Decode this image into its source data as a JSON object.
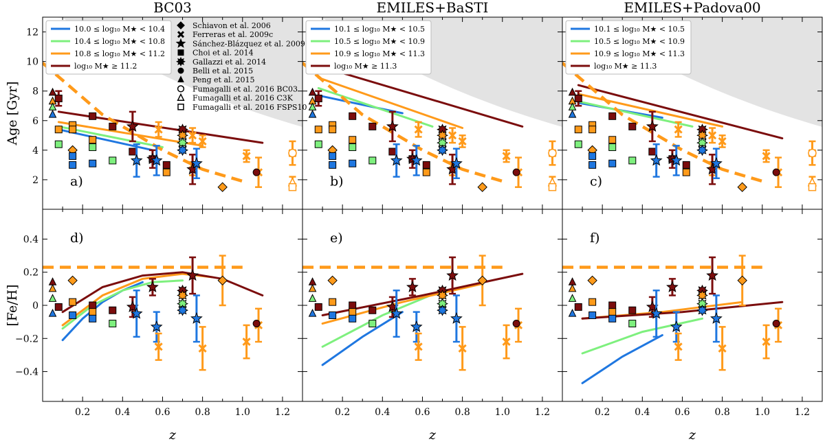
{
  "chart_data": {
    "type": "line",
    "x_label": "z",
    "x_range": [
      0,
      1.3
    ],
    "x_ticks": [
      "0.2",
      "0.4",
      "0.6",
      "0.8",
      "1.0",
      "1.2"
    ],
    "x_tick_values": [
      0.2,
      0.4,
      0.6,
      0.8,
      1.0,
      1.2
    ],
    "top_row": {
      "y_label": "Age [Gyr]",
      "y_range": [
        0,
        13
      ],
      "y_ticks": [
        "2",
        "4",
        "6",
        "8",
        "10",
        "12"
      ],
      "y_tick_values": [
        2,
        4,
        6,
        8,
        10,
        12
      ]
    },
    "bottom_row": {
      "y_label": "[Fe/H]",
      "y_range": [
        -0.58,
        0.58
      ],
      "y_ticks": [
        "−0.4",
        "−0.2",
        "0",
        "0.2",
        "0.4"
      ],
      "y_tick_values": [
        -0.4,
        -0.2,
        0,
        0.2,
        0.4
      ]
    },
    "colors": {
      "bin1": "#1f77e0",
      "bin2": "#7ef07e",
      "bin3": "#ff9a1a",
      "bin4": "#7b0d0d",
      "shade": "#e3e3e3"
    },
    "columns": [
      {
        "title": "BC03",
        "legend": [
          "10.0 ≤ log₁₀ M★ < 10.4",
          "10.4 ≤ log₁₀ M★ < 10.8",
          "10.8 ≤ log₁₀ M★ < 11.2",
          "log₁₀ M★ ≥ 11.2"
        ],
        "age_letter": "a)",
        "feh_letter": "d)",
        "age_series": [
          {
            "name": "bin1",
            "x": [
              0.08,
              0.55
            ],
            "y": [
              5.4,
              4.0
            ]
          },
          {
            "name": "bin2",
            "x": [
              0.08,
              0.6
            ],
            "y": [
              5.6,
              4.2
            ]
          },
          {
            "name": "bin3",
            "x": [
              0.08,
              0.8
            ],
            "y": [
              5.9,
              4.3
            ]
          },
          {
            "name": "bin4",
            "x": [
              0.08,
              1.1
            ],
            "y": [
              6.6,
              4.5
            ]
          }
        ],
        "age_dashed": {
          "x": [
            0.0,
            0.3,
            0.6,
            0.8,
            1.0
          ],
          "y": [
            9.9,
            6.4,
            4.0,
            2.7,
            1.9
          ]
        },
        "feh_series": [
          {
            "name": "bin1",
            "x": [
              0.1,
              0.2,
              0.3,
              0.4,
              0.5
            ],
            "y": [
              -0.21,
              -0.08,
              0.02,
              0.09,
              0.14
            ]
          },
          {
            "name": "bin2",
            "x": [
              0.1,
              0.25,
              0.4,
              0.55,
              0.7
            ],
            "y": [
              -0.14,
              0.0,
              0.09,
              0.14,
              0.15
            ]
          },
          {
            "name": "bin3",
            "x": [
              0.1,
              0.3,
              0.5,
              0.7,
              0.85
            ],
            "y": [
              -0.12,
              0.06,
              0.16,
              0.19,
              0.17
            ]
          },
          {
            "name": "bin4",
            "x": [
              0.1,
              0.3,
              0.5,
              0.7,
              0.9,
              1.1
            ],
            "y": [
              -0.04,
              0.11,
              0.18,
              0.2,
              0.16,
              0.06
            ]
          }
        ]
      },
      {
        "title": "EMILES+BaSTI",
        "legend": [
          "10.1 ≤ log₁₀ M★ < 10.5",
          "10.5 ≤ log₁₀ M★ < 10.9",
          "10.9 ≤ log₁₀ M★ < 11.3",
          "log₁₀ M★ ≥ 11.3"
        ],
        "age_letter": "b)",
        "feh_letter": "e)",
        "age_series": [
          {
            "name": "bin1",
            "x": [
              0.08,
              0.5
            ],
            "y": [
              7.7,
              6.5
            ]
          },
          {
            "name": "bin2",
            "x": [
              0.08,
              0.65
            ],
            "y": [
              8.2,
              5.6
            ]
          },
          {
            "name": "bin3",
            "x": [
              0.08,
              0.8
            ],
            "y": [
              8.9,
              5.5
            ]
          },
          {
            "name": "bin4",
            "x": [
              0.08,
              1.1
            ],
            "y": [
              9.7,
              5.6
            ]
          }
        ],
        "age_dashed": {
          "x": [
            0.0,
            0.3,
            0.6,
            0.8,
            1.0
          ],
          "y": [
            9.9,
            6.4,
            4.0,
            2.7,
            1.9
          ]
        },
        "feh_series": [
          {
            "name": "bin1",
            "x": [
              0.1,
              0.3,
              0.5
            ],
            "y": [
              -0.36,
              -0.19,
              -0.04
            ]
          },
          {
            "name": "bin2",
            "x": [
              0.1,
              0.4,
              0.7
            ],
            "y": [
              -0.25,
              -0.06,
              0.09
            ]
          },
          {
            "name": "bin3",
            "x": [
              0.1,
              0.5,
              0.9
            ],
            "y": [
              -0.11,
              0.02,
              0.13
            ]
          },
          {
            "name": "bin4",
            "x": [
              0.1,
              0.6,
              1.1
            ],
            "y": [
              -0.06,
              0.06,
              0.19
            ]
          }
        ]
      },
      {
        "title": "EMILES+Padova00",
        "legend": [
          "10.1 ≤ log₁₀ M★ < 10.5",
          "10.5 ≤ log₁₀ M★ < 10.9",
          "10.9 ≤ log₁₀ M★ < 11.3",
          "log₁₀ M★ ≥ 11.3"
        ],
        "age_letter": "c)",
        "feh_letter": "f)",
        "age_series": [
          {
            "name": "bin1",
            "x": [
              0.08,
              0.5
            ],
            "y": [
              7.2,
              6.2
            ]
          },
          {
            "name": "bin2",
            "x": [
              0.08,
              0.65
            ],
            "y": [
              7.3,
              5.6
            ]
          },
          {
            "name": "bin3",
            "x": [
              0.08,
              0.8
            ],
            "y": [
              7.8,
              5.6
            ]
          },
          {
            "name": "bin4",
            "x": [
              0.08,
              1.1
            ],
            "y": [
              8.4,
              4.8
            ]
          }
        ],
        "age_dashed": {
          "x": [
            0.0,
            0.3,
            0.6,
            0.8,
            1.0
          ],
          "y": [
            9.9,
            6.4,
            4.0,
            2.7,
            1.9
          ]
        },
        "feh_series": [
          {
            "name": "bin1",
            "x": [
              0.1,
              0.3,
              0.5
            ],
            "y": [
              -0.47,
              -0.31,
              -0.18
            ]
          },
          {
            "name": "bin2",
            "x": [
              0.1,
              0.4,
              0.7
            ],
            "y": [
              -0.29,
              -0.16,
              -0.08
            ]
          },
          {
            "name": "bin3",
            "x": [
              0.1,
              0.5,
              0.9
            ],
            "y": [
              -0.08,
              -0.04,
              0.02
            ]
          },
          {
            "name": "bin4",
            "x": [
              0.1,
              0.6,
              1.1
            ],
            "y": [
              -0.08,
              -0.04,
              0.02
            ]
          }
        ]
      }
    ],
    "references": [
      {
        "label": "Schiavon et al. 2006",
        "marker": "diamond"
      },
      {
        "label": "Ferreras et al. 2009c",
        "marker": "x"
      },
      {
        "label": "Sánchez-Blázquez et al. 2009",
        "marker": "star"
      },
      {
        "label": "Choi et al. 2014",
        "marker": "square"
      },
      {
        "label": "Gallazzi et al. 2014",
        "marker": "star8"
      },
      {
        "label": "Belli et al. 2015",
        "marker": "circle"
      },
      {
        "label": "Peng et al. 2015",
        "marker": "triangle"
      },
      {
        "label": "Fumagalli et al. 2016 BC03",
        "marker": "circle-open"
      },
      {
        "label": "Fumagalli et al. 2016 C3K",
        "marker": "triangle-open"
      },
      {
        "label": "Fumagalli et al. 2016 FSPS10",
        "marker": "square-open"
      }
    ],
    "age_points": [
      {
        "m": "triangle",
        "c": "bin4",
        "x": 0.05,
        "y": 7.9
      },
      {
        "m": "triangle",
        "c": "bin3",
        "x": 0.05,
        "y": 7.3
      },
      {
        "m": "triangle",
        "c": "bin2",
        "x": 0.05,
        "y": 6.9
      },
      {
        "m": "triangle",
        "c": "bin1",
        "x": 0.05,
        "y": 6.4
      },
      {
        "m": "square",
        "c": "bin4",
        "x": 0.08,
        "y": 7.5,
        "e": 0.5
      },
      {
        "m": "square",
        "c": "bin3",
        "x": 0.08,
        "y": 5.4
      },
      {
        "m": "square",
        "c": "bin2",
        "x": 0.08,
        "y": 4.4
      },
      {
        "m": "square",
        "c": "bin3",
        "x": 0.15,
        "y": 5.7
      },
      {
        "m": "square",
        "c": "bin3",
        "x": 0.15,
        "y": 5.4
      },
      {
        "m": "diamond",
        "c": "bin3",
        "x": 0.15,
        "y": 4.0
      },
      {
        "m": "square",
        "c": "bin1",
        "x": 0.15,
        "y": 3.6
      },
      {
        "m": "square",
        "c": "bin1",
        "x": 0.15,
        "y": 3.0
      },
      {
        "m": "square",
        "c": "bin4",
        "x": 0.25,
        "y": 6.3
      },
      {
        "m": "square",
        "c": "bin3",
        "x": 0.25,
        "y": 4.7
      },
      {
        "m": "square",
        "c": "bin2",
        "x": 0.25,
        "y": 4.2
      },
      {
        "m": "square",
        "c": "bin1",
        "x": 0.25,
        "y": 3.1
      },
      {
        "m": "square",
        "c": "bin4",
        "x": 0.35,
        "y": 5.6
      },
      {
        "m": "square",
        "c": "bin2",
        "x": 0.35,
        "y": 3.3
      },
      {
        "m": "star",
        "c": "bin4",
        "x": 0.45,
        "y": 5.6,
        "e": 1.0
      },
      {
        "m": "square",
        "c": "bin4",
        "x": 0.45,
        "y": 3.9
      },
      {
        "m": "star",
        "c": "bin1",
        "x": 0.47,
        "y": 3.3,
        "e": 1.1
      },
      {
        "m": "square",
        "c": "bin4",
        "x": 0.55,
        "y": 3.4
      },
      {
        "m": "star",
        "c": "bin4",
        "x": 0.55,
        "y": 3.4,
        "e": 0.6
      },
      {
        "m": "star",
        "c": "bin1",
        "x": 0.57,
        "y": 3.3,
        "e": 1.0
      },
      {
        "m": "square",
        "c": "bin4",
        "x": 0.62,
        "y": 3.0
      },
      {
        "m": "square",
        "c": "bin3",
        "x": 0.62,
        "y": 2.5
      },
      {
        "m": "x",
        "c": "bin3",
        "x": 0.58,
        "y": 5.4,
        "e": 0.5
      },
      {
        "m": "star8",
        "c": "bin4",
        "x": 0.7,
        "y": 5.4
      },
      {
        "m": "star8",
        "c": "bin3",
        "x": 0.7,
        "y": 5.0
      },
      {
        "m": "star8",
        "c": "bin2",
        "x": 0.7,
        "y": 4.5
      },
      {
        "m": "star8",
        "c": "bin1",
        "x": 0.7,
        "y": 4.0
      },
      {
        "m": "x",
        "c": "bin3",
        "x": 0.75,
        "y": 5.0,
        "e": 0.5
      },
      {
        "m": "x",
        "c": "bin3",
        "x": 0.75,
        "y": 3.0,
        "e": 0.7
      },
      {
        "m": "star",
        "c": "bin4",
        "x": 0.75,
        "y": 2.7,
        "e": 1.0
      },
      {
        "m": "star",
        "c": "bin1",
        "x": 0.77,
        "y": 3.1,
        "e": 1.0
      },
      {
        "m": "x",
        "c": "bin3",
        "x": 0.8,
        "y": 4.6,
        "e": 0.4
      },
      {
        "m": "diamond",
        "c": "bin3",
        "x": 0.9,
        "y": 1.5
      },
      {
        "m": "x",
        "c": "bin3",
        "x": 1.02,
        "y": 3.6,
        "e": 0.4
      },
      {
        "m": "x",
        "c": "bin3",
        "x": 1.08,
        "y": 2.5,
        "e": 1.0
      },
      {
        "m": "circle",
        "c": "bin4",
        "x": 1.07,
        "y": 2.5
      },
      {
        "m": "x",
        "c": "bin3",
        "x": 1.25,
        "y": 3.8,
        "e": 0.8
      },
      {
        "m": "circle-open",
        "c": "bin3",
        "x": 1.25,
        "y": 3.8
      },
      {
        "m": "triangle-open",
        "c": "bin3",
        "x": 1.25,
        "y": 1.8,
        "e": 0.4
      },
      {
        "m": "square-open",
        "c": "bin3",
        "x": 1.25,
        "y": 1.5
      }
    ],
    "feh_points": [
      {
        "m": "triangle",
        "c": "bin4",
        "x": 0.05,
        "y": 0.14
      },
      {
        "m": "triangle",
        "c": "bin3",
        "x": 0.05,
        "y": 0.1
      },
      {
        "m": "triangle",
        "c": "bin2",
        "x": 0.05,
        "y": 0.04
      },
      {
        "m": "triangle",
        "c": "bin1",
        "x": 0.05,
        "y": -0.05
      },
      {
        "m": "square",
        "c": "bin4",
        "x": 0.08,
        "y": -0.01
      },
      {
        "m": "diamond",
        "c": "bin3",
        "x": 0.15,
        "y": 0.15
      },
      {
        "m": "square",
        "c": "bin3",
        "x": 0.15,
        "y": 0.02
      },
      {
        "m": "square",
        "c": "bin1",
        "x": 0.15,
        "y": -0.06
      },
      {
        "m": "square",
        "c": "bin4",
        "x": 0.25,
        "y": 0.0
      },
      {
        "m": "square",
        "c": "bin3",
        "x": 0.25,
        "y": -0.04
      },
      {
        "m": "square",
        "c": "bin1",
        "x": 0.25,
        "y": -0.08
      },
      {
        "m": "square",
        "c": "bin2",
        "x": 0.35,
        "y": -0.11
      },
      {
        "m": "square",
        "c": "bin4",
        "x": 0.35,
        "y": -0.03
      },
      {
        "m": "star",
        "c": "bin4",
        "x": 0.45,
        "y": -0.01,
        "e": 0.06
      },
      {
        "m": "star",
        "c": "bin1",
        "x": 0.47,
        "y": -0.05,
        "e": 0.14
      },
      {
        "m": "star",
        "c": "bin4",
        "x": 0.55,
        "y": 0.11,
        "e": 0.05
      },
      {
        "m": "star",
        "c": "bin1",
        "x": 0.57,
        "y": -0.13,
        "e": 0.09
      },
      {
        "m": "x",
        "c": "bin3",
        "x": 0.58,
        "y": -0.25,
        "e": 0.08
      },
      {
        "m": "star8",
        "c": "bin4",
        "x": 0.7,
        "y": 0.09
      },
      {
        "m": "star8",
        "c": "bin3",
        "x": 0.7,
        "y": 0.06
      },
      {
        "m": "star8",
        "c": "bin2",
        "x": 0.7,
        "y": 0.01
      },
      {
        "m": "star8",
        "c": "bin1",
        "x": 0.7,
        "y": -0.03
      },
      {
        "m": "star",
        "c": "bin4",
        "x": 0.75,
        "y": 0.18,
        "e": 0.11
      },
      {
        "m": "star",
        "c": "bin1",
        "x": 0.77,
        "y": -0.08,
        "e": 0.14
      },
      {
        "m": "x",
        "c": "bin3",
        "x": 0.8,
        "y": -0.26,
        "e": 0.13
      },
      {
        "m": "diamond",
        "c": "bin3",
        "x": 0.9,
        "y": 0.15,
        "e": 0.15
      },
      {
        "m": "x",
        "c": "bin3",
        "x": 1.02,
        "y": -0.22,
        "e": 0.1
      },
      {
        "m": "x",
        "c": "bin3",
        "x": 1.08,
        "y": -0.12,
        "e": 0.1
      },
      {
        "m": "circle",
        "c": "bin4",
        "x": 1.07,
        "y": -0.11
      }
    ],
    "feh_solar_line": {
      "y": 0.23,
      "x": [
        0.0,
        1.0
      ]
    }
  }
}
